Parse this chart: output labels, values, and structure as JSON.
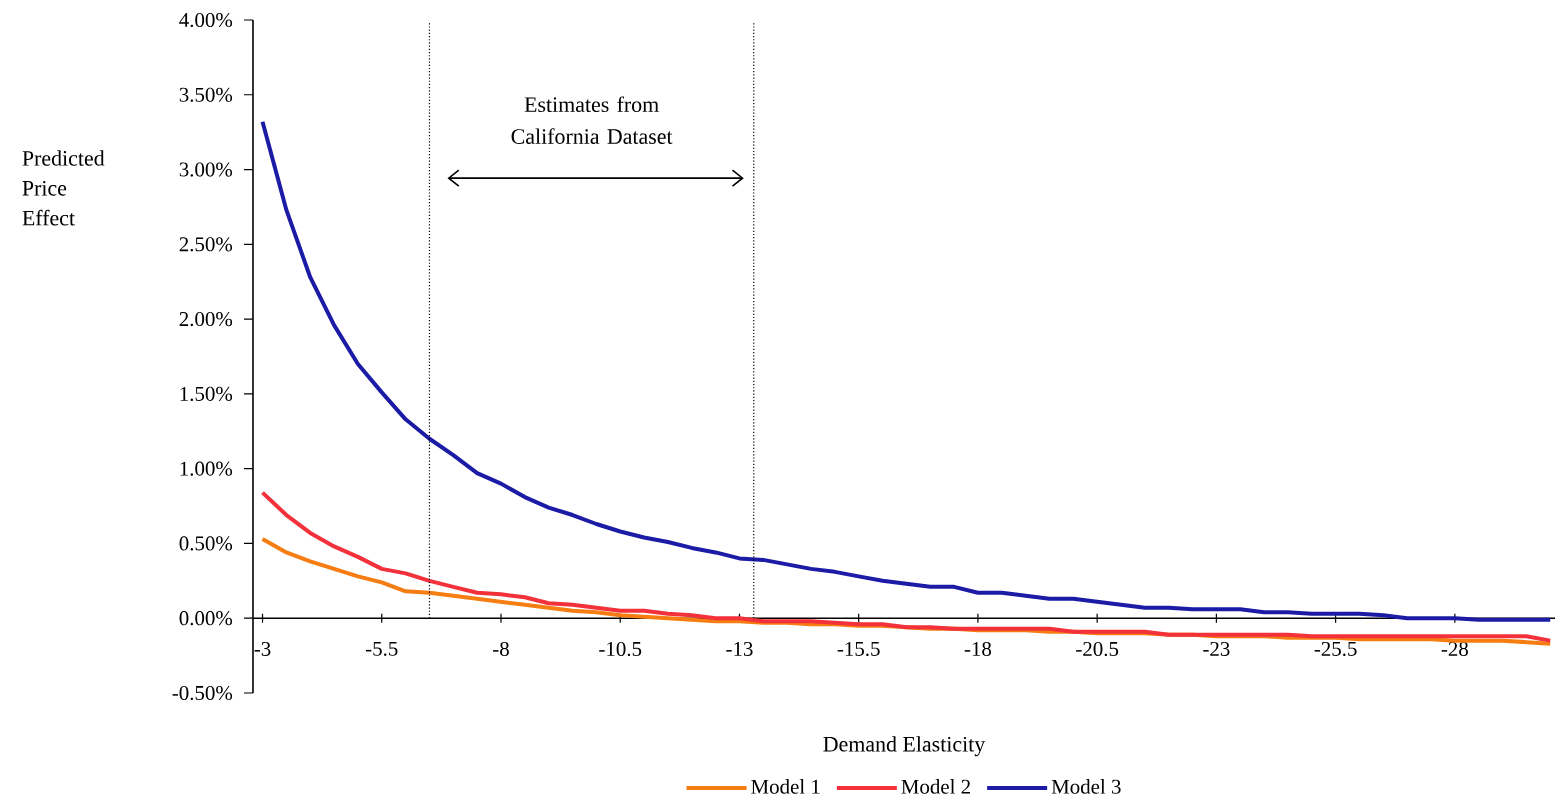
{
  "chart_data": {
    "type": "line",
    "xlabel": "Demand Elasticity",
    "ylabel": "Predicted Price Effect",
    "x": [
      -3,
      -3.5,
      -4,
      -4.5,
      -5,
      -5.5,
      -6,
      -6.5,
      -7,
      -7.5,
      -8,
      -8.5,
      -9,
      -9.5,
      -10,
      -10.5,
      -11,
      -11.5,
      -12,
      -12.5,
      -13,
      -13.5,
      -14,
      -14.5,
      -15,
      -15.5,
      -16,
      -16.5,
      -17,
      -17.5,
      -18,
      -18.5,
      -19,
      -19.5,
      -20,
      -20.5,
      -21,
      -21.5,
      -22,
      -22.5,
      -23,
      -23.5,
      -24,
      -24.5,
      -25,
      -25.5,
      -26,
      -26.5,
      -27,
      -27.5,
      -28,
      -28.5,
      -29,
      -29.5,
      -30
    ],
    "series": [
      {
        "name": "Model 1",
        "color": "#f57d12",
        "values": [
          0.53,
          0.44,
          0.38,
          0.33,
          0.28,
          0.24,
          0.18,
          0.17,
          0.15,
          0.13,
          0.11,
          0.09,
          0.07,
          0.05,
          0.04,
          0.02,
          0.01,
          0.0,
          -0.01,
          -0.02,
          -0.02,
          -0.03,
          -0.03,
          -0.04,
          -0.04,
          -0.05,
          -0.05,
          -0.06,
          -0.07,
          -0.07,
          -0.08,
          -0.08,
          -0.08,
          -0.09,
          -0.09,
          -0.1,
          -0.1,
          -0.1,
          -0.11,
          -0.11,
          -0.12,
          -0.12,
          -0.12,
          -0.13,
          -0.13,
          -0.13,
          -0.14,
          -0.14,
          -0.14,
          -0.14,
          -0.15,
          -0.15,
          -0.15,
          -0.16,
          -0.17
        ]
      },
      {
        "name": "Model 2",
        "color": "#f2313b",
        "values": [
          0.84,
          0.69,
          0.57,
          0.48,
          0.41,
          0.33,
          0.3,
          0.25,
          0.21,
          0.17,
          0.16,
          0.14,
          0.1,
          0.09,
          0.07,
          0.05,
          0.05,
          0.03,
          0.02,
          0.0,
          0.0,
          -0.02,
          -0.02,
          -0.02,
          -0.03,
          -0.04,
          -0.04,
          -0.06,
          -0.06,
          -0.07,
          -0.07,
          -0.07,
          -0.07,
          -0.07,
          -0.09,
          -0.09,
          -0.09,
          -0.09,
          -0.11,
          -0.11,
          -0.11,
          -0.11,
          -0.11,
          -0.11,
          -0.12,
          -0.12,
          -0.12,
          -0.12,
          -0.12,
          -0.12,
          -0.12,
          -0.12,
          -0.12,
          -0.12,
          -0.15
        ]
      },
      {
        "name": "Model 3",
        "color": "#1b1ba6",
        "values": [
          3.32,
          2.73,
          2.28,
          1.96,
          1.7,
          1.51,
          1.33,
          1.2,
          1.09,
          0.97,
          0.9,
          0.81,
          0.74,
          0.69,
          0.63,
          0.58,
          0.54,
          0.51,
          0.47,
          0.44,
          0.4,
          0.39,
          0.36,
          0.33,
          0.31,
          0.28,
          0.25,
          0.23,
          0.21,
          0.21,
          0.17,
          0.17,
          0.15,
          0.13,
          0.13,
          0.11,
          0.09,
          0.07,
          0.07,
          0.06,
          0.06,
          0.06,
          0.04,
          0.04,
          0.03,
          0.03,
          0.03,
          0.02,
          0.0,
          0.0,
          0.0,
          -0.01,
          -0.01,
          -0.01,
          -0.01
        ]
      }
    ],
    "xlim": [
      -2.8,
      -30.1
    ],
    "xticks": [
      -3,
      -5.5,
      -8,
      -10.5,
      -13,
      -15.5,
      -18,
      -20.5,
      -23,
      -25.5,
      -28
    ],
    "ylim": [
      -0.5,
      4
    ],
    "yticks": [
      {
        "value": -0.5,
        "label": "-0.50%"
      },
      {
        "value": 0,
        "label": "0.00%"
      },
      {
        "value": 0.5,
        "label": "0.50%"
      },
      {
        "value": 1,
        "label": "1.00%"
      },
      {
        "value": 1.5,
        "label": "1.50%"
      },
      {
        "value": 2,
        "label": "2.00%"
      },
      {
        "value": 2.5,
        "label": "2.50%"
      },
      {
        "value": 3,
        "label": "3.00%"
      },
      {
        "value": 3.5,
        "label": "3.50%"
      },
      {
        "value": 4,
        "label": "4.00%"
      }
    ],
    "ref_lines": [
      {
        "axis": "x",
        "value": -6.5,
        "color": "#000000",
        "line_style": "dotted"
      },
      {
        "axis": "x",
        "value": -13.3,
        "color": "#000000",
        "line_style": "dotted"
      }
    ],
    "annotations": [
      "Estimates from California Dataset"
    ],
    "legend": "bottom",
    "grid": false,
    "marker": "none",
    "line_style": "solid"
  }
}
